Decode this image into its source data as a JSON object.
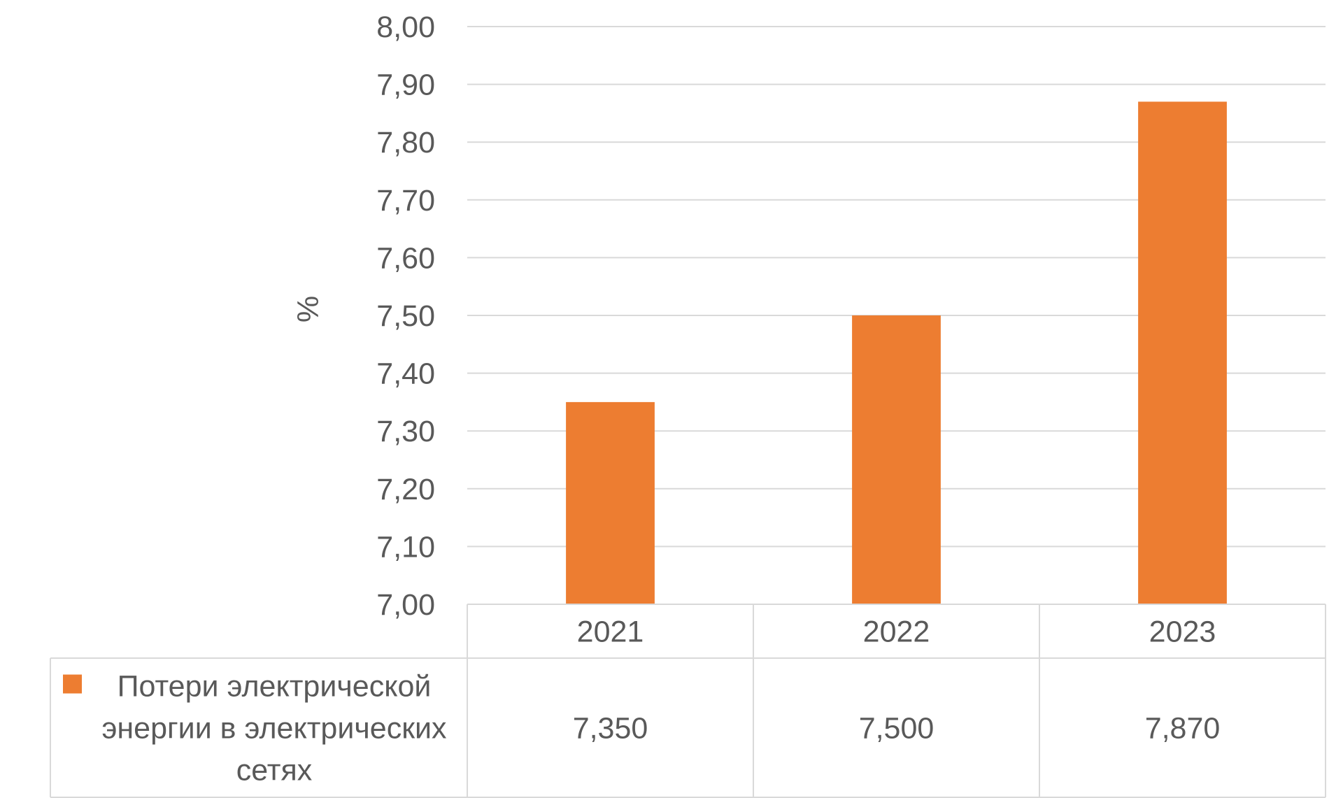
{
  "chart_data": {
    "type": "bar",
    "categories": [
      "2021",
      "2022",
      "2023"
    ],
    "series": [
      {
        "name": "Потери электрической энергии в электрических сетях",
        "name_lines": [
          "Потери электрической",
          "энергии в электрических",
          "сетях"
        ],
        "values": [
          7.35,
          7.5,
          7.87
        ],
        "value_labels": [
          "7,350",
          "7,500",
          "7,870"
        ],
        "color": "#ED7D31"
      }
    ],
    "title": "",
    "xlabel": "",
    "ylabel": "%",
    "ylim": [
      7.0,
      8.0
    ],
    "yticks": [
      7.0,
      7.1,
      7.2,
      7.3,
      7.4,
      7.5,
      7.6,
      7.7,
      7.8,
      7.9,
      8.0
    ],
    "ytick_labels": [
      "7,00",
      "7,10",
      "7,20",
      "7,30",
      "7,40",
      "7,50",
      "7,60",
      "7,70",
      "7,80",
      "7,90",
      "8,00"
    ],
    "grid": true,
    "legend": "data-table",
    "gridline_color": "#D9D9D9",
    "text_color": "#595959"
  }
}
